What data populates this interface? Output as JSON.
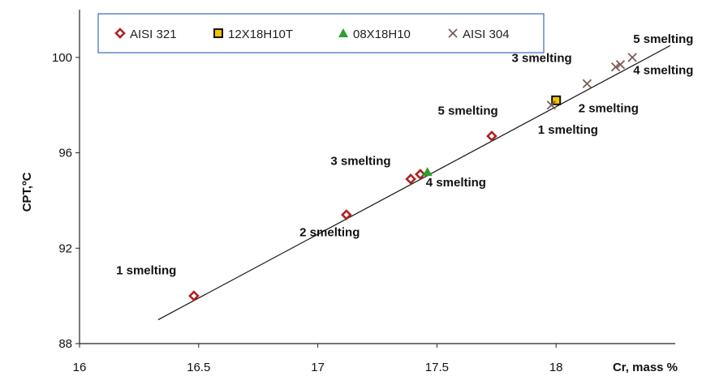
{
  "chart_data": {
    "type": "scatter",
    "xlabel": "Cr, mass %",
    "ylabel": "CPT,ºC",
    "xlim": [
      16,
      18.5
    ],
    "ylim": [
      88,
      102
    ],
    "x_ticks": [
      16,
      16.5,
      17,
      17.5,
      18
    ],
    "y_ticks": [
      88,
      92,
      96,
      100
    ],
    "x_tick_labels": [
      "16",
      "16.5",
      "17",
      "17.5",
      "18"
    ],
    "y_tick_labels": [
      "88",
      "92",
      "96",
      "100"
    ],
    "grid": false,
    "legend_position": "top",
    "series": [
      {
        "name": "AISI 321",
        "marker": "diamond",
        "color": "#b22222",
        "points": [
          {
            "x": 16.48,
            "y": 90.0
          },
          {
            "x": 17.12,
            "y": 93.4
          },
          {
            "x": 17.39,
            "y": 94.9
          },
          {
            "x": 17.43,
            "y": 95.1
          },
          {
            "x": 17.73,
            "y": 96.7
          }
        ]
      },
      {
        "name": "12X18H10T",
        "marker": "square",
        "color": "#f5c400",
        "points": [
          {
            "x": 18.0,
            "y": 98.2
          }
        ]
      },
      {
        "name": "08X18H10",
        "marker": "triangle",
        "color": "#2ca02c",
        "points": [
          {
            "x": 17.46,
            "y": 95.2
          }
        ]
      },
      {
        "name": "AISI 304",
        "marker": "x",
        "color": "#7a5c58",
        "points": [
          {
            "x": 17.98,
            "y": 98.0
          },
          {
            "x": 18.13,
            "y": 98.9
          },
          {
            "x": 18.25,
            "y": 99.6
          },
          {
            "x": 18.27,
            "y": 99.7
          },
          {
            "x": 18.32,
            "y": 100.0
          }
        ]
      }
    ],
    "trendline": {
      "x": [
        16.33,
        18.48
      ],
      "y": [
        89.0,
        100.5
      ]
    },
    "annotations": [
      {
        "text": "1 smelting",
        "x": 16.28,
        "y": 90.9
      },
      {
        "text": "2 smelting",
        "x": 17.05,
        "y": 92.5
      },
      {
        "text": "3 smelting",
        "x": 17.18,
        "y": 95.5
      },
      {
        "text": "4 smelting",
        "x": 17.58,
        "y": 94.6
      },
      {
        "text": "5 smelting",
        "x": 17.63,
        "y": 97.6
      },
      {
        "text": "1 smelting",
        "x": 18.05,
        "y": 96.8
      },
      {
        "text": "2 smelting",
        "x": 18.22,
        "y": 97.7
      },
      {
        "text": "3 smelting",
        "x": 17.94,
        "y": 99.8
      },
      {
        "text": "4 smelting",
        "x": 18.45,
        "y": 99.3
      },
      {
        "text": "5 smelting",
        "x": 18.45,
        "y": 100.6
      }
    ]
  }
}
